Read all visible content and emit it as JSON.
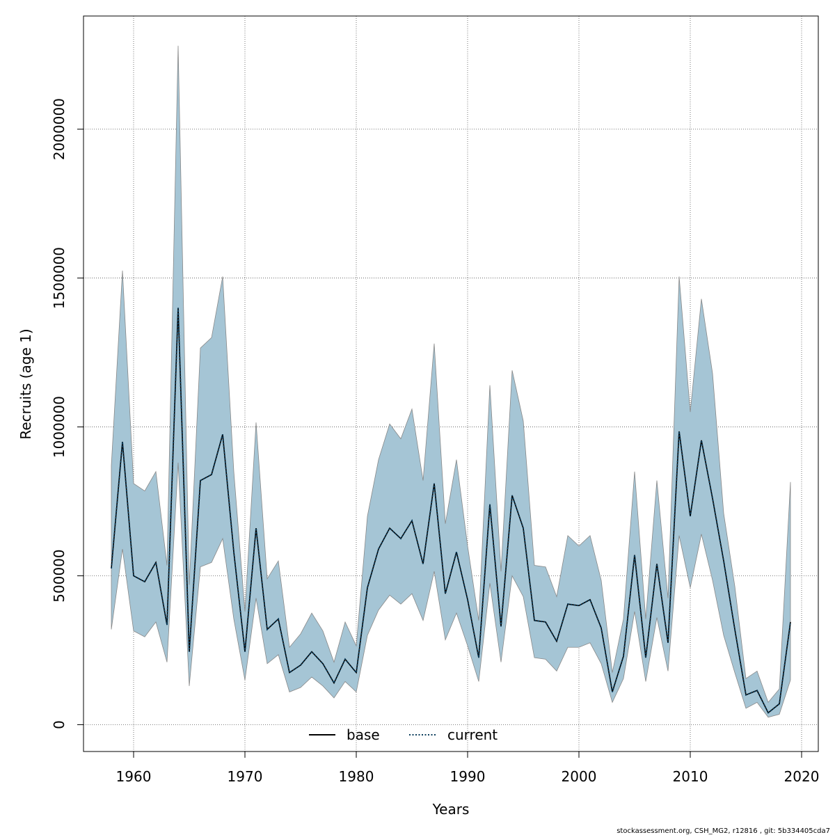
{
  "chart_data": {
    "type": "area",
    "xlabel": "Years",
    "ylabel": "Recruits (age 1)",
    "xlim": [
      1955.5,
      2021.5
    ],
    "ylim": [
      -90000,
      2380000
    ],
    "x_ticks": [
      1960,
      1970,
      1980,
      1990,
      2000,
      2010,
      2020
    ],
    "x_tick_labels": [
      "1960",
      "1970",
      "1980",
      "1990",
      "2000",
      "2010",
      "2020"
    ],
    "y_ticks": [
      0,
      500000,
      1000000,
      1500000,
      2000000
    ],
    "y_tick_labels": [
      "0",
      "500000",
      "1000000",
      "1500000",
      "2000000"
    ],
    "grid": true,
    "legend_position": "bottom-center",
    "legend": [
      {
        "label": "base",
        "style": "solid",
        "color": "#000000"
      },
      {
        "label": "current",
        "style": "dotted",
        "color": "#0b3d5c"
      }
    ],
    "years": [
      1958,
      1959,
      1960,
      1961,
      1962,
      1963,
      1964,
      1965,
      1966,
      1967,
      1968,
      1969,
      1970,
      1971,
      1972,
      1973,
      1974,
      1975,
      1976,
      1977,
      1978,
      1979,
      1980,
      1981,
      1982,
      1983,
      1984,
      1985,
      1986,
      1987,
      1988,
      1989,
      1990,
      1991,
      1992,
      1993,
      1994,
      1995,
      1996,
      1997,
      1998,
      1999,
      2000,
      2001,
      2002,
      2003,
      2004,
      2005,
      2006,
      2007,
      2008,
      2009,
      2010,
      2011,
      2012,
      2013,
      2014,
      2015,
      2016,
      2017,
      2018,
      2019
    ],
    "series": [
      {
        "name": "base",
        "values": [
          525000,
          950000,
          500000,
          480000,
          545000,
          335000,
          1400000,
          245000,
          820000,
          840000,
          975000,
          580000,
          245000,
          660000,
          320000,
          355000,
          175000,
          200000,
          245000,
          205000,
          140000,
          220000,
          175000,
          460000,
          590000,
          660000,
          625000,
          685000,
          540000,
          810000,
          440000,
          580000,
          420000,
          225000,
          740000,
          330000,
          770000,
          660000,
          350000,
          345000,
          280000,
          405000,
          400000,
          420000,
          325000,
          110000,
          230000,
          570000,
          225000,
          540000,
          275000,
          985000,
          700000,
          955000,
          760000,
          550000,
          320000,
          100000,
          115000,
          40000,
          70000,
          345000
        ]
      },
      {
        "name": "current",
        "values": [
          525000,
          950000,
          500000,
          480000,
          545000,
          335000,
          1400000,
          245000,
          820000,
          840000,
          975000,
          580000,
          245000,
          660000,
          320000,
          355000,
          175000,
          200000,
          245000,
          205000,
          140000,
          220000,
          175000,
          460000,
          590000,
          660000,
          625000,
          685000,
          540000,
          810000,
          440000,
          580000,
          420000,
          225000,
          740000,
          330000,
          770000,
          660000,
          350000,
          345000,
          280000,
          405000,
          400000,
          420000,
          325000,
          110000,
          230000,
          570000,
          225000,
          540000,
          275000,
          985000,
          700000,
          955000,
          760000,
          550000,
          320000,
          100000,
          115000,
          40000,
          70000,
          345000
        ]
      }
    ],
    "band": {
      "color": "#a5c5d5",
      "edge_color": "#888888",
      "upper": [
        870000,
        1525000,
        810000,
        785000,
        850000,
        535000,
        2280000,
        470000,
        1265000,
        1300000,
        1505000,
        850000,
        380000,
        1015000,
        490000,
        550000,
        260000,
        305000,
        375000,
        315000,
        210000,
        345000,
        265000,
        700000,
        890000,
        1010000,
        960000,
        1060000,
        820000,
        1280000,
        675000,
        890000,
        600000,
        350000,
        1140000,
        515000,
        1190000,
        1020000,
        535000,
        530000,
        430000,
        635000,
        600000,
        635000,
        485000,
        175000,
        355000,
        850000,
        355000,
        820000,
        425000,
        1505000,
        1050000,
        1430000,
        1180000,
        710000,
        465000,
        155000,
        180000,
        75000,
        120000,
        815000
      ],
      "lower": [
        320000,
        590000,
        315000,
        295000,
        345000,
        210000,
        880000,
        130000,
        530000,
        545000,
        625000,
        355000,
        150000,
        425000,
        205000,
        235000,
        110000,
        125000,
        160000,
        130000,
        90000,
        145000,
        110000,
        300000,
        385000,
        435000,
        405000,
        440000,
        350000,
        515000,
        285000,
        375000,
        265000,
        145000,
        475000,
        210000,
        500000,
        430000,
        225000,
        220000,
        180000,
        260000,
        260000,
        275000,
        205000,
        75000,
        155000,
        380000,
        145000,
        360000,
        180000,
        635000,
        460000,
        640000,
        485000,
        300000,
        175000,
        55000,
        75000,
        25000,
        35000,
        150000
      ]
    }
  },
  "footnote": "stockassessment.org, CSH_MG2, r12816 , git: 5b334405cda7"
}
